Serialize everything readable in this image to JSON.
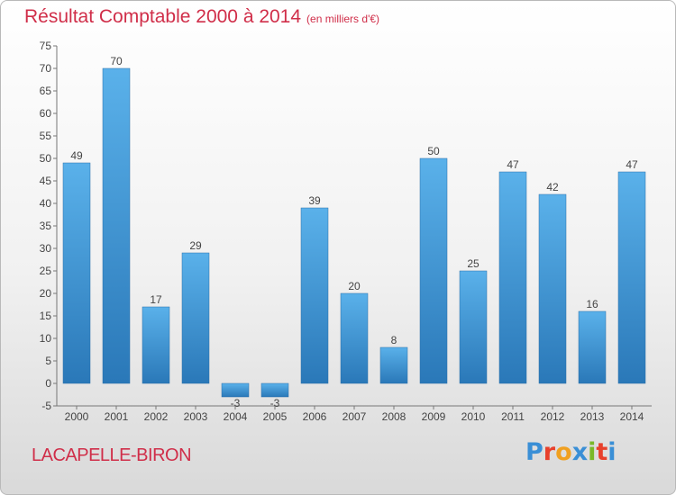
{
  "header": {
    "title": "Résultat Comptable 2000 à 2014",
    "unit": "(en milliers d'€)"
  },
  "footer": {
    "commune": "LACAPELLE-BIRON",
    "logo_text": "Proxiti",
    "logo_colors": [
      "#3a8fd6",
      "#e8412c",
      "#f0a020",
      "#3a8fd6",
      "#7ab829",
      "#e8412c",
      "#3a8fd6"
    ]
  },
  "colors": {
    "bar_light": "#5ab1ea",
    "bar_dark": "#2a78b8",
    "text": "#d02e49"
  },
  "chart_data": {
    "type": "bar",
    "categories": [
      "2000",
      "2001",
      "2002",
      "2003",
      "2004",
      "2005",
      "2006",
      "2007",
      "2008",
      "2009",
      "2010",
      "2011",
      "2012",
      "2013",
      "2014"
    ],
    "values": [
      49,
      70,
      17,
      29,
      -3,
      -3,
      39,
      20,
      8,
      50,
      25,
      47,
      42,
      16,
      47
    ],
    "value_labels": [
      "49",
      "70",
      "17",
      "29",
      "-3",
      "-3",
      "39",
      "20",
      "8",
      "50",
      "25",
      "47",
      "42",
      "16",
      "47"
    ],
    "yticks": [
      -5,
      0,
      5,
      10,
      15,
      20,
      25,
      30,
      35,
      40,
      45,
      50,
      55,
      60,
      65,
      70,
      75
    ],
    "ylim": [
      -5,
      75
    ],
    "grid": false,
    "legend": "none"
  }
}
